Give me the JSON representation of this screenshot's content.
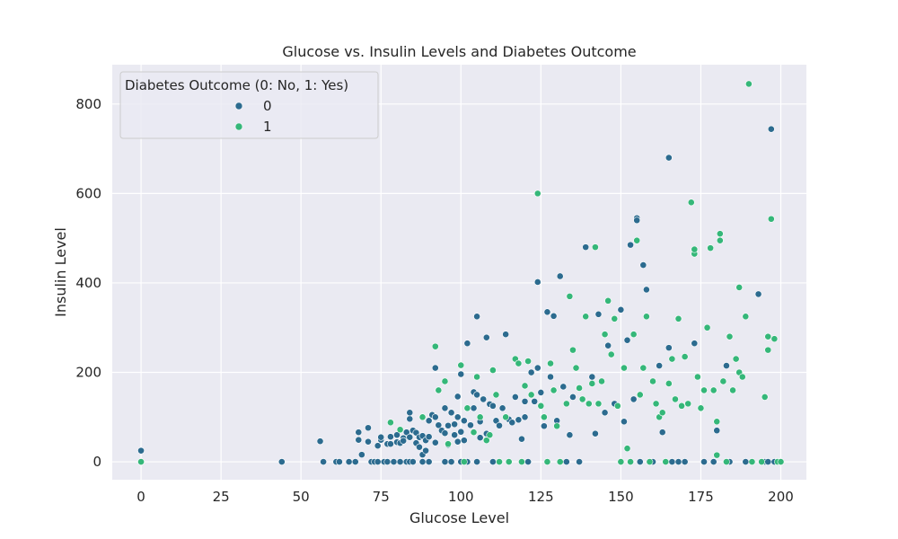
{
  "chart_data": {
    "type": "scatter",
    "title": "Glucose vs. Insulin Levels and Diabetes Outcome",
    "xlabel": "Glucose Level",
    "ylabel": "Insulin Level",
    "xlim": [
      -9,
      208
    ],
    "ylim": [
      -40,
      888
    ],
    "xticks": [
      0,
      25,
      50,
      75,
      100,
      125,
      150,
      175,
      200
    ],
    "yticks": [
      0,
      200,
      400,
      600,
      800
    ],
    "grid": true,
    "legend": {
      "title": "Diabetes Outcome (0: No, 1: Yes)",
      "placement": "upper-left"
    },
    "series": [
      {
        "name": "0",
        "color": "#2c6b8f",
        "points": [
          [
            0,
            25
          ],
          [
            44,
            0
          ],
          [
            56,
            46
          ],
          [
            57,
            0
          ],
          [
            61,
            0
          ],
          [
            62,
            0
          ],
          [
            65,
            0
          ],
          [
            67,
            0
          ],
          [
            68,
            66
          ],
          [
            68,
            49
          ],
          [
            69,
            16
          ],
          [
            71,
            76
          ],
          [
            71,
            45
          ],
          [
            72,
            0
          ],
          [
            73,
            0
          ],
          [
            74,
            36
          ],
          [
            74,
            0
          ],
          [
            75,
            49
          ],
          [
            75,
            55
          ],
          [
            76,
            0
          ],
          [
            77,
            0
          ],
          [
            77,
            40
          ],
          [
            78,
            56
          ],
          [
            78,
            40
          ],
          [
            79,
            0
          ],
          [
            80,
            44
          ],
          [
            80,
            60
          ],
          [
            81,
            42
          ],
          [
            81,
            0
          ],
          [
            82,
            53
          ],
          [
            82,
            47
          ],
          [
            83,
            0
          ],
          [
            83,
            66
          ],
          [
            84,
            96
          ],
          [
            84,
            110
          ],
          [
            84,
            0
          ],
          [
            84,
            55
          ],
          [
            85,
            0
          ],
          [
            85,
            70
          ],
          [
            86,
            42
          ],
          [
            86,
            65
          ],
          [
            87,
            33
          ],
          [
            87,
            55
          ],
          [
            88,
            58
          ],
          [
            88,
            0
          ],
          [
            88,
            16
          ],
          [
            89,
            25
          ],
          [
            89,
            48
          ],
          [
            90,
            92
          ],
          [
            90,
            56
          ],
          [
            90,
            0
          ],
          [
            91,
            105
          ],
          [
            92,
            100
          ],
          [
            92,
            43
          ],
          [
            92,
            210
          ],
          [
            93,
            82
          ],
          [
            94,
            70
          ],
          [
            95,
            64
          ],
          [
            95,
            120
          ],
          [
            95,
            0
          ],
          [
            96,
            38
          ],
          [
            96,
            81
          ],
          [
            97,
            110
          ],
          [
            97,
            0
          ],
          [
            98,
            84
          ],
          [
            98,
            60
          ],
          [
            99,
            45
          ],
          [
            99,
            100
          ],
          [
            99,
            146
          ],
          [
            100,
            196
          ],
          [
            100,
            67
          ],
          [
            100,
            0
          ],
          [
            101,
            92
          ],
          [
            101,
            48
          ],
          [
            102,
            265
          ],
          [
            102,
            0
          ],
          [
            103,
            82
          ],
          [
            104,
            120
          ],
          [
            104,
            156
          ],
          [
            105,
            325
          ],
          [
            105,
            150
          ],
          [
            105,
            0
          ],
          [
            106,
            54
          ],
          [
            106,
            90
          ],
          [
            107,
            140
          ],
          [
            108,
            63
          ],
          [
            108,
            278
          ],
          [
            109,
            129
          ],
          [
            110,
            125
          ],
          [
            110,
            0
          ],
          [
            111,
            92
          ],
          [
            112,
            81
          ],
          [
            112,
            0
          ],
          [
            113,
            120
          ],
          [
            114,
            285
          ],
          [
            115,
            95
          ],
          [
            116,
            88
          ],
          [
            117,
            145
          ],
          [
            118,
            94
          ],
          [
            119,
            51
          ],
          [
            120,
            100
          ],
          [
            120,
            135
          ],
          [
            121,
            0
          ],
          [
            122,
            200
          ],
          [
            123,
            135
          ],
          [
            124,
            210
          ],
          [
            124,
            402
          ],
          [
            125,
            155
          ],
          [
            126,
            80
          ],
          [
            127,
            335
          ],
          [
            128,
            190
          ],
          [
            129,
            326
          ],
          [
            130,
            92
          ],
          [
            131,
            415
          ],
          [
            132,
            168
          ],
          [
            133,
            0
          ],
          [
            134,
            60
          ],
          [
            135,
            145
          ],
          [
            137,
            0
          ],
          [
            139,
            480
          ],
          [
            141,
            190
          ],
          [
            142,
            63
          ],
          [
            143,
            330
          ],
          [
            145,
            110
          ],
          [
            146,
            260
          ],
          [
            148,
            130
          ],
          [
            150,
            340
          ],
          [
            151,
            90
          ],
          [
            152,
            272
          ],
          [
            153,
            485
          ],
          [
            154,
            140
          ],
          [
            155,
            545
          ],
          [
            155,
            540
          ],
          [
            156,
            0
          ],
          [
            157,
            440
          ],
          [
            158,
            385
          ],
          [
            160,
            0
          ],
          [
            162,
            215
          ],
          [
            163,
            66
          ],
          [
            165,
            680
          ],
          [
            165,
            255
          ],
          [
            166,
            0
          ],
          [
            168,
            0
          ],
          [
            170,
            0
          ],
          [
            173,
            265
          ],
          [
            176,
            0
          ],
          [
            179,
            0
          ],
          [
            180,
            70
          ],
          [
            183,
            215
          ],
          [
            184,
            0
          ],
          [
            189,
            0
          ],
          [
            193,
            375
          ],
          [
            194,
            0
          ],
          [
            195,
            0
          ],
          [
            196,
            0
          ],
          [
            197,
            744
          ],
          [
            198,
            0
          ]
        ]
      },
      {
        "name": "1",
        "color": "#35b779",
        "points": [
          [
            0,
            0
          ],
          [
            78,
            88
          ],
          [
            81,
            72
          ],
          [
            88,
            100
          ],
          [
            92,
            258
          ],
          [
            93,
            160
          ],
          [
            95,
            180
          ],
          [
            96,
            40
          ],
          [
            100,
            216
          ],
          [
            101,
            0
          ],
          [
            102,
            120
          ],
          [
            104,
            66
          ],
          [
            105,
            190
          ],
          [
            106,
            100
          ],
          [
            108,
            48
          ],
          [
            109,
            60
          ],
          [
            110,
            205
          ],
          [
            111,
            150
          ],
          [
            112,
            0
          ],
          [
            114,
            100
          ],
          [
            115,
            0
          ],
          [
            117,
            230
          ],
          [
            118,
            220
          ],
          [
            119,
            0
          ],
          [
            120,
            170
          ],
          [
            121,
            225
          ],
          [
            122,
            150
          ],
          [
            124,
            600
          ],
          [
            125,
            125
          ],
          [
            126,
            100
          ],
          [
            127,
            0
          ],
          [
            128,
            220
          ],
          [
            129,
            160
          ],
          [
            130,
            80
          ],
          [
            131,
            0
          ],
          [
            133,
            130
          ],
          [
            134,
            370
          ],
          [
            135,
            250
          ],
          [
            136,
            210
          ],
          [
            137,
            165
          ],
          [
            138,
            140
          ],
          [
            139,
            325
          ],
          [
            140,
            130
          ],
          [
            141,
            175
          ],
          [
            142,
            480
          ],
          [
            143,
            130
          ],
          [
            144,
            180
          ],
          [
            145,
            285
          ],
          [
            146,
            360
          ],
          [
            147,
            240
          ],
          [
            148,
            320
          ],
          [
            149,
            125
          ],
          [
            150,
            0
          ],
          [
            151,
            210
          ],
          [
            152,
            30
          ],
          [
            153,
            0
          ],
          [
            154,
            285
          ],
          [
            155,
            495
          ],
          [
            156,
            150
          ],
          [
            157,
            210
          ],
          [
            158,
            325
          ],
          [
            159,
            0
          ],
          [
            160,
            180
          ],
          [
            161,
            130
          ],
          [
            162,
            100
          ],
          [
            163,
            110
          ],
          [
            164,
            0
          ],
          [
            165,
            175
          ],
          [
            166,
            230
          ],
          [
            167,
            140
          ],
          [
            168,
            320
          ],
          [
            169,
            125
          ],
          [
            170,
            235
          ],
          [
            171,
            130
          ],
          [
            172,
            580
          ],
          [
            173,
            465
          ],
          [
            173,
            475
          ],
          [
            174,
            190
          ],
          [
            175,
            120
          ],
          [
            176,
            160
          ],
          [
            177,
            300
          ],
          [
            178,
            478
          ],
          [
            179,
            160
          ],
          [
            180,
            90
          ],
          [
            180,
            15
          ],
          [
            181,
            495
          ],
          [
            181,
            510
          ],
          [
            182,
            180
          ],
          [
            183,
            0
          ],
          [
            184,
            280
          ],
          [
            185,
            160
          ],
          [
            186,
            230
          ],
          [
            187,
            390
          ],
          [
            187,
            200
          ],
          [
            188,
            190
          ],
          [
            189,
            325
          ],
          [
            190,
            845
          ],
          [
            191,
            0
          ],
          [
            194,
            0
          ],
          [
            195,
            145
          ],
          [
            196,
            280
          ],
          [
            196,
            250
          ],
          [
            197,
            543
          ],
          [
            198,
            275
          ],
          [
            199,
            0
          ],
          [
            200,
            0
          ]
        ]
      }
    ]
  }
}
